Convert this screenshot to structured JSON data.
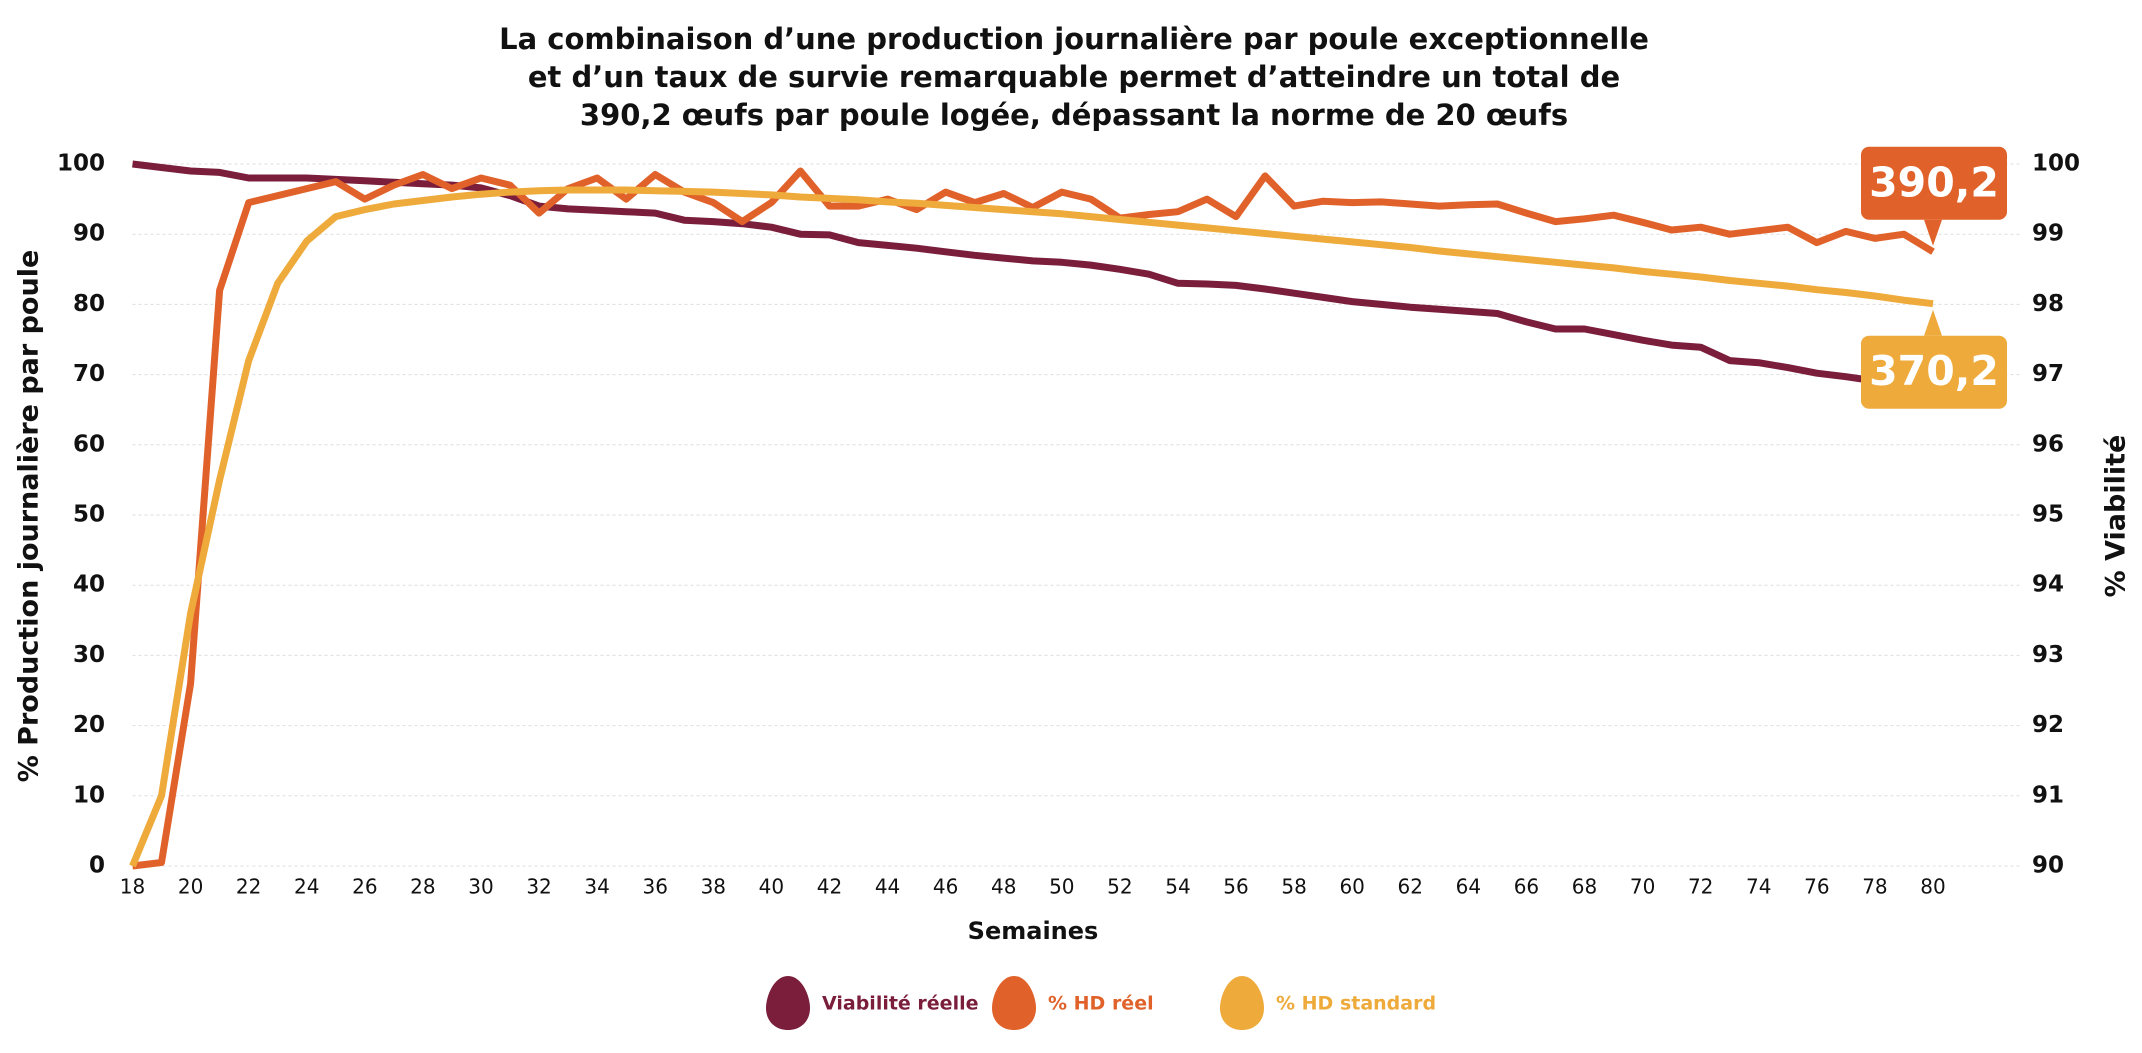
{
  "chart_data": {
    "type": "line",
    "title": [
      "La combinaison d’une production journalière par poule exceptionnelle",
      "et d’un taux de survie remarquable permet d’atteindre un total de",
      "390,2 œufs par poule logée, dépassant la norme de 20 œufs"
    ],
    "xlabel": "Semaines",
    "ylabel": "% Production journalière par poule",
    "y2label": "% Viabilité",
    "x": [
      18,
      19,
      20,
      21,
      22,
      23,
      24,
      25,
      26,
      27,
      28,
      29,
      30,
      31,
      32,
      33,
      34,
      35,
      36,
      37,
      38,
      39,
      40,
      41,
      42,
      43,
      44,
      45,
      46,
      47,
      48,
      49,
      50,
      51,
      52,
      53,
      54,
      55,
      56,
      57,
      58,
      59,
      60,
      61,
      62,
      63,
      64,
      65,
      66,
      67,
      68,
      69,
      70,
      71,
      72,
      73,
      74,
      75,
      76,
      77,
      78,
      79,
      80
    ],
    "xlim": [
      18,
      80
    ],
    "xticks": [
      18,
      20,
      22,
      24,
      26,
      28,
      30,
      32,
      34,
      36,
      38,
      40,
      42,
      44,
      46,
      48,
      50,
      52,
      54,
      56,
      58,
      60,
      62,
      64,
      66,
      68,
      70,
      72,
      74,
      76,
      78,
      80
    ],
    "ylim": [
      0,
      100
    ],
    "yticks": [
      0,
      10,
      20,
      30,
      40,
      50,
      60,
      70,
      80,
      90,
      100
    ],
    "y2lim": [
      90,
      100
    ],
    "y2ticks": [
      90,
      91,
      92,
      93,
      94,
      95,
      96,
      97,
      98,
      99,
      100
    ],
    "grid": true,
    "series": [
      {
        "name": "Viabilité réelle",
        "color": "#7a1e3c",
        "axis": "y2",
        "values": [
          100,
          99.95,
          99.9,
          99.88,
          99.8,
          99.8,
          99.8,
          99.78,
          99.76,
          99.74,
          99.72,
          99.7,
          99.66,
          99.55,
          99.4,
          99.36,
          99.34,
          99.32,
          99.3,
          99.2,
          99.18,
          99.15,
          99.1,
          99.0,
          98.99,
          98.88,
          98.84,
          98.8,
          98.75,
          98.7,
          98.66,
          98.62,
          98.6,
          98.56,
          98.5,
          98.43,
          98.3,
          98.29,
          98.27,
          98.22,
          98.16,
          98.1,
          98.04,
          98.0,
          97.96,
          97.93,
          97.9,
          97.87,
          97.75,
          97.65,
          97.65,
          97.57,
          97.49,
          97.42,
          97.39,
          97.2,
          97.17,
          97.1,
          97.02,
          96.97,
          96.91,
          null,
          null
        ]
      },
      {
        "name": "% HD réel",
        "color": "#e0622a",
        "total_label": "390,2",
        "values": [
          0,
          0.5,
          26,
          82,
          94.5,
          95.5,
          96.5,
          97.5,
          95,
          97,
          98.5,
          96.5,
          98,
          97,
          93,
          96.5,
          98,
          95,
          98.5,
          96,
          94.5,
          91.8,
          94.5,
          99,
          94,
          94,
          95,
          93.5,
          96,
          94.5,
          95.8,
          93.8,
          96,
          95,
          92.3,
          92.8,
          93.2,
          95,
          92.5,
          98.3,
          94,
          94.7,
          94.5,
          94.6,
          94.3,
          94,
          94.2,
          94.3,
          93,
          91.8,
          92.2,
          92.7,
          91.7,
          90.6,
          91,
          90,
          90.5,
          91,
          88.8,
          90.4,
          89.4,
          90,
          87.5
        ]
      },
      {
        "name": "% HD standard",
        "color": "#eeaa3a",
        "total_label": "370,2",
        "values": [
          0,
          10,
          36,
          55,
          72,
          83,
          89,
          92.5,
          93.5,
          94.3,
          94.8,
          95.3,
          95.7,
          96,
          96.2,
          96.3,
          96.3,
          96.3,
          96.2,
          96.1,
          96,
          95.8,
          95.6,
          95.3,
          95.1,
          94.9,
          94.6,
          94.4,
          94.1,
          93.8,
          93.5,
          93.2,
          92.9,
          92.5,
          92.1,
          91.7,
          91.3,
          90.9,
          90.5,
          90.1,
          89.7,
          89.3,
          88.9,
          88.5,
          88.1,
          87.6,
          87.2,
          86.8,
          86.4,
          86,
          85.6,
          85.2,
          84.7,
          84.3,
          83.9,
          83.4,
          83,
          82.6,
          82.1,
          81.7,
          81.2,
          80.6,
          80.1
        ]
      }
    ]
  }
}
